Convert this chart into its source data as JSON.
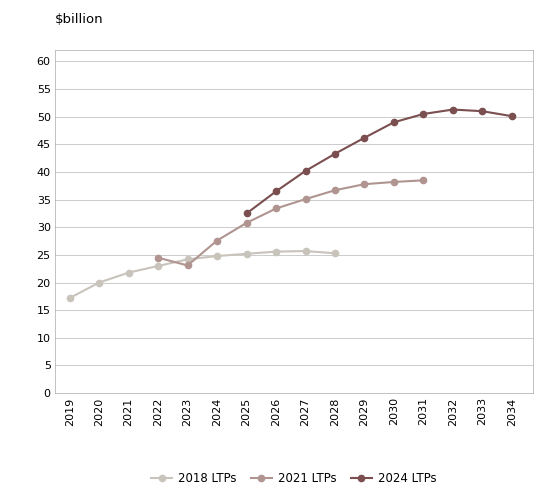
{
  "ylabel_text": "$billion",
  "ylim": [
    0,
    62
  ],
  "yticks": [
    0,
    5,
    10,
    15,
    20,
    25,
    30,
    35,
    40,
    45,
    50,
    55,
    60
  ],
  "series": {
    "2018 LTPs": {
      "years": [
        2019,
        2020,
        2021,
        2022,
        2023,
        2024,
        2025,
        2026,
        2027,
        2028
      ],
      "values": [
        17.2,
        20.0,
        21.8,
        23.0,
        24.2,
        24.8,
        25.2,
        25.6,
        25.7,
        25.3
      ],
      "color": "#c8c3bb",
      "marker": "o",
      "linewidth": 1.5,
      "markersize": 4.5
    },
    "2021 LTPs": {
      "years": [
        2022,
        2023,
        2024,
        2025,
        2026,
        2027,
        2028,
        2029,
        2030,
        2031
      ],
      "values": [
        24.5,
        23.1,
        27.6,
        30.8,
        33.4,
        35.1,
        36.7,
        37.8,
        38.2,
        38.5
      ],
      "color": "#b09490",
      "marker": "o",
      "linewidth": 1.5,
      "markersize": 4.5
    },
    "2024 LTPs": {
      "years": [
        2025,
        2026,
        2027,
        2028,
        2029,
        2030,
        2031,
        2032,
        2033,
        2034
      ],
      "values": [
        32.5,
        36.5,
        40.2,
        43.3,
        46.2,
        49.0,
        50.5,
        51.3,
        51.0,
        50.1
      ],
      "color": "#7b4f4f",
      "marker": "o",
      "linewidth": 1.5,
      "markersize": 4.5
    }
  },
  "xlim": [
    2018.5,
    2034.7
  ],
  "xticks": [
    2019,
    2020,
    2021,
    2022,
    2023,
    2024,
    2025,
    2026,
    2027,
    2028,
    2029,
    2030,
    2031,
    2032,
    2033,
    2034
  ],
  "background_color": "#ffffff",
  "grid_color": "#cccccc",
  "tick_fontsize": 8,
  "legend_fontsize": 8.5,
  "ylabel_fontsize": 9.5,
  "border_color": "#aaaaaa"
}
